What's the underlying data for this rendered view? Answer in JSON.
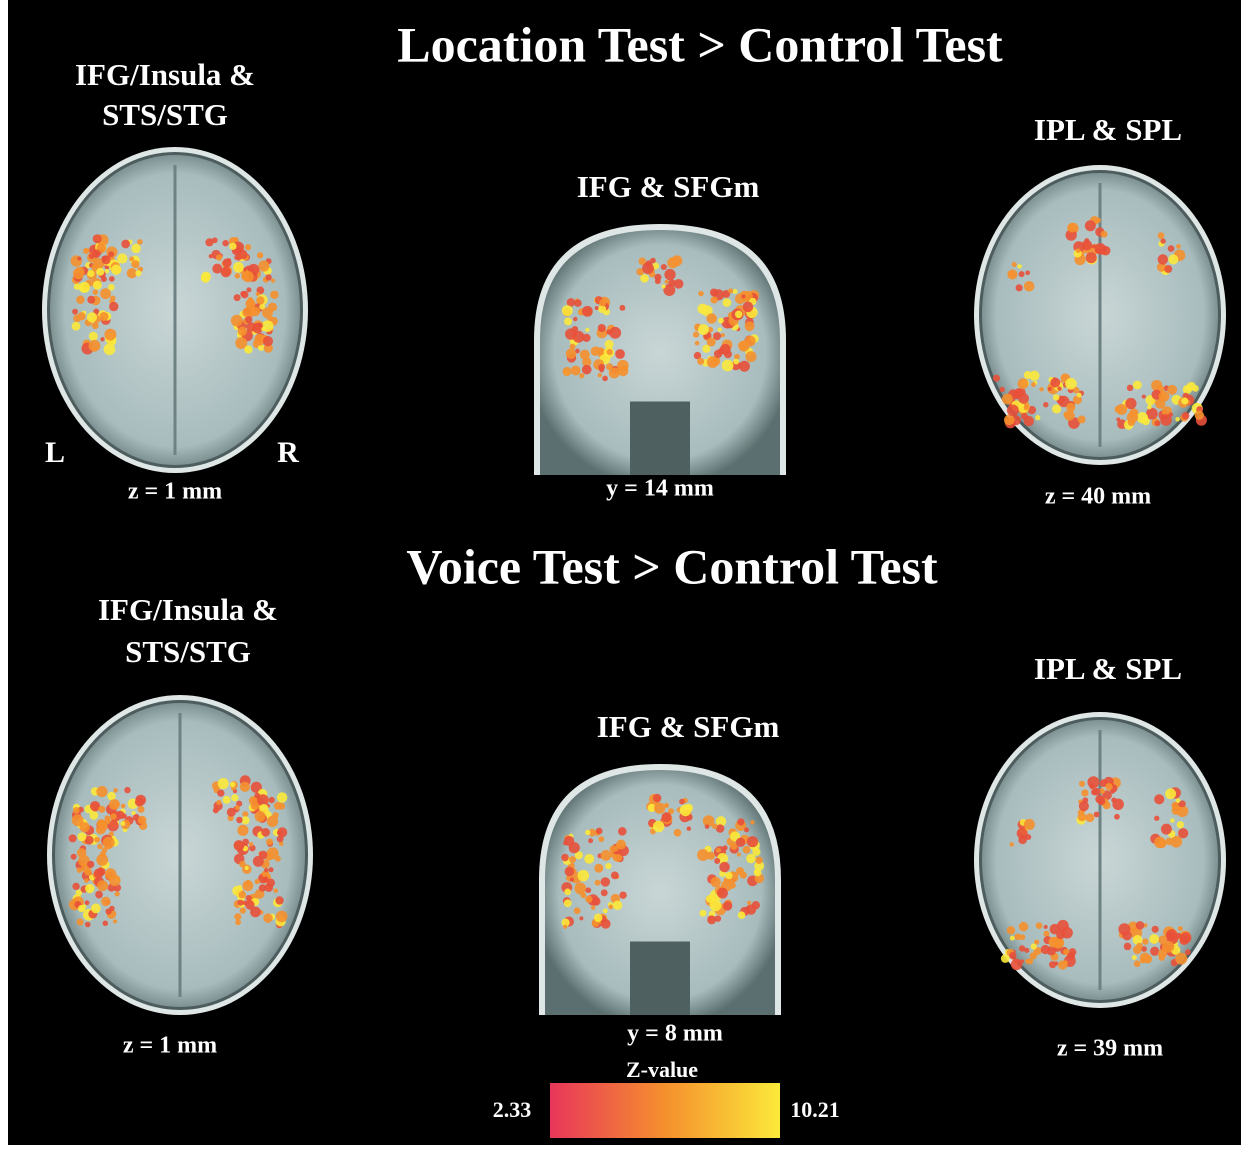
{
  "rows": [
    {
      "title": "Location Test > Control Test",
      "panels": [
        {
          "label_lines": [
            "IFG/Insula &",
            "STS/STG"
          ],
          "coord": "z = 1 mm",
          "left": "L",
          "right": "R"
        },
        {
          "label_lines": [
            "IFG & SFGm"
          ],
          "coord": "y = 14 mm"
        },
        {
          "label_lines": [
            "IPL & SPL"
          ],
          "coord": "z = 40 mm"
        }
      ]
    },
    {
      "title": "Voice Test > Control Test",
      "panels": [
        {
          "label_lines": [
            "IFG/Insula &",
            "STS/STG"
          ],
          "coord": "z = 1 mm"
        },
        {
          "label_lines": [
            "IFG & SFGm"
          ],
          "coord": "y = 8 mm"
        },
        {
          "label_lines": [
            "IPL & SPL"
          ],
          "coord": "z = 39 mm"
        }
      ]
    }
  ],
  "colorbar": {
    "title": "Z-value",
    "min": "2.33",
    "max": "10.21"
  }
}
